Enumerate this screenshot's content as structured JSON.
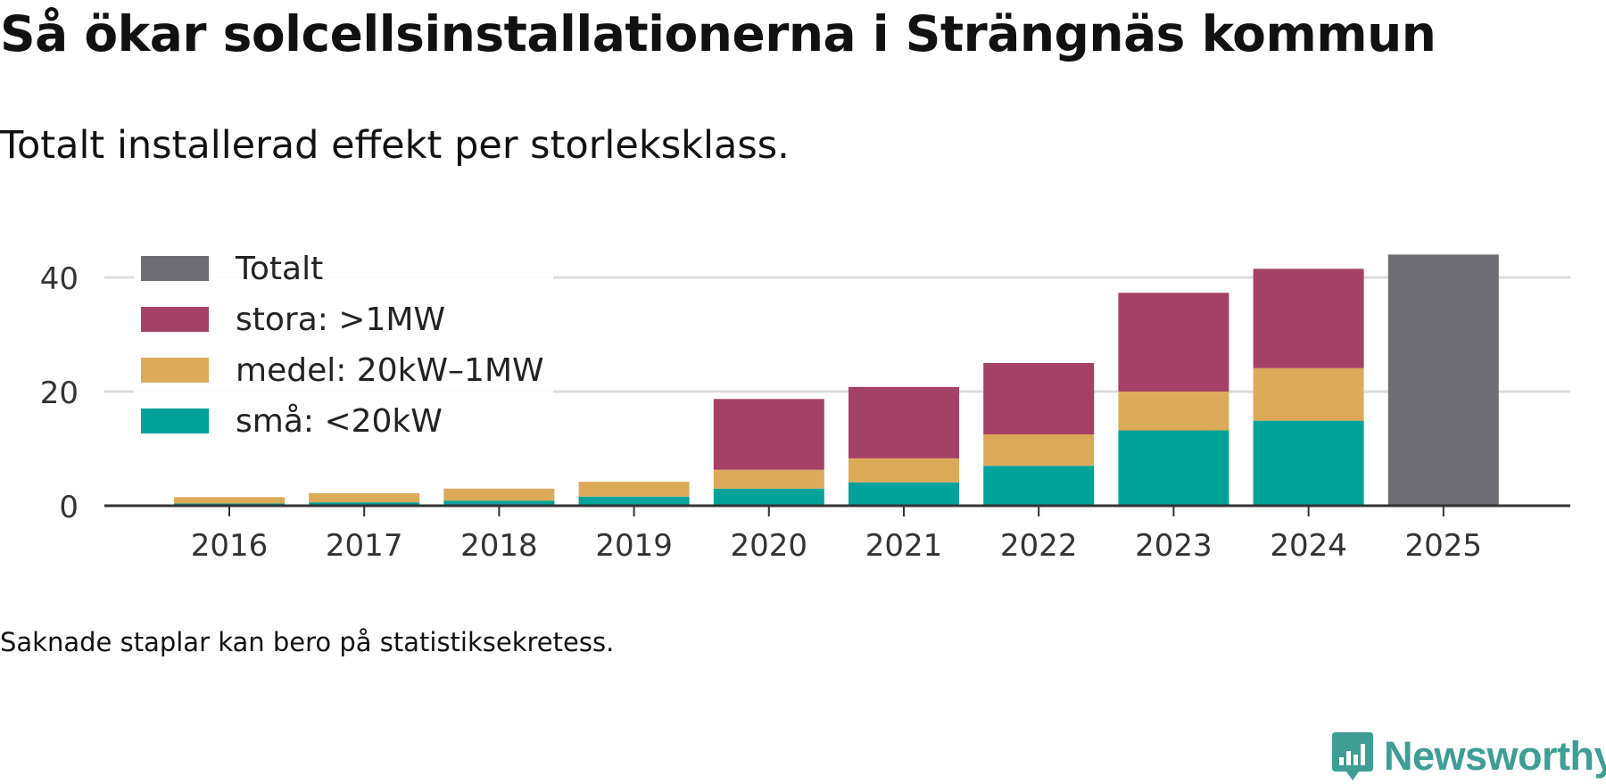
{
  "title": "Så ökar solcellsinstallationerna i Strängnäs kommun",
  "subtitle": "Totalt installerad effekt per storleksklass.",
  "footnote": "Saknade staplar kan bero på statistiksekretess.",
  "logo": {
    "text": "Newsworthy",
    "icon": "newsworthy-chart-icon",
    "color": "#3e9e93"
  },
  "chart_data": {
    "type": "bar",
    "stacked": true,
    "categories": [
      "2016",
      "2017",
      "2018",
      "2019",
      "2020",
      "2021",
      "2022",
      "2023",
      "2024",
      "2025"
    ],
    "series": [
      {
        "name": "små: <20kW",
        "color": "#00a39a",
        "values": [
          0.4,
          0.6,
          0.9,
          1.6,
          3.0,
          4.1,
          7.0,
          13.2,
          14.9,
          null
        ]
      },
      {
        "name": "medel: 20kW–1MW",
        "color": "#dcaa58",
        "values": [
          1.1,
          1.6,
          2.1,
          2.6,
          3.3,
          4.2,
          5.5,
          6.8,
          9.2,
          null
        ]
      },
      {
        "name": "stora: >1MW",
        "color": "#a54166",
        "values": [
          0,
          0,
          0,
          0,
          12.4,
          12.5,
          12.5,
          17.3,
          17.4,
          null
        ]
      },
      {
        "name": "Totalt",
        "color": "#6e6d73",
        "values": [
          null,
          null,
          null,
          null,
          null,
          null,
          null,
          null,
          null,
          44.0
        ]
      }
    ],
    "legend_order": [
      "Totalt",
      "stora: >1MW",
      "medel: 20kW–1MW",
      "små: <20kW"
    ],
    "legend_position": "top-left",
    "yticks": [
      0,
      20,
      40
    ],
    "ylim": [
      0,
      44
    ],
    "grid": true,
    "xlabel": "",
    "ylabel": ""
  }
}
